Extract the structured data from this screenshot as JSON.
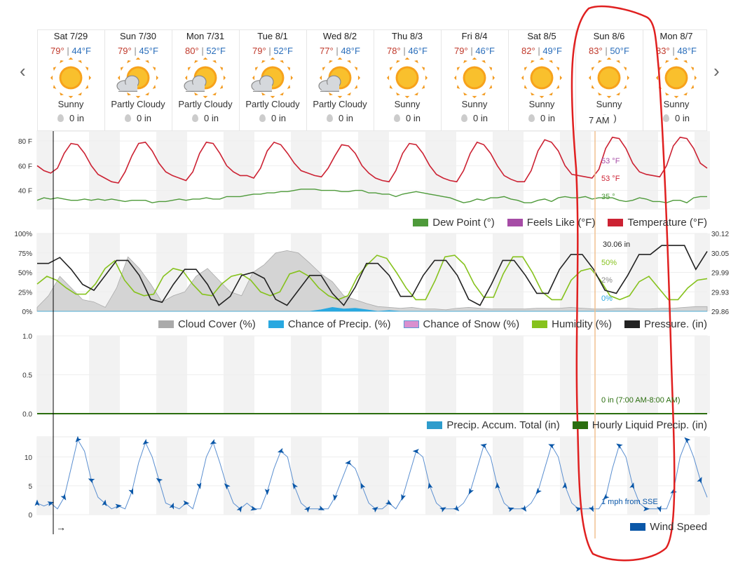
{
  "nav": {
    "prev": "‹",
    "next": "›"
  },
  "days": [
    {
      "date": "Sat 7/29",
      "hi": "79°",
      "lo": "44°F",
      "cond": "Sunny",
      "icon": "sunny-icon",
      "precip": "0 in"
    },
    {
      "date": "Sun 7/30",
      "hi": "79°",
      "lo": "45°F",
      "cond": "Partly Cloudy",
      "icon": "partly-cloudy-icon",
      "precip": "0 in"
    },
    {
      "date": "Mon 7/31",
      "hi": "80°",
      "lo": "52°F",
      "cond": "Partly Cloudy",
      "icon": "partly-cloudy-icon",
      "precip": "0 in"
    },
    {
      "date": "Tue 8/1",
      "hi": "79°",
      "lo": "52°F",
      "cond": "Partly Cloudy",
      "icon": "partly-cloudy-icon",
      "precip": "0 in"
    },
    {
      "date": "Wed 8/2",
      "hi": "77°",
      "lo": "48°F",
      "cond": "Partly Cloudy",
      "icon": "partly-cloudy-icon",
      "precip": "0 in"
    },
    {
      "date": "Thu 8/3",
      "hi": "78°",
      "lo": "46°F",
      "cond": "Sunny",
      "icon": "sunny-icon",
      "precip": "0 in"
    },
    {
      "date": "Fri 8/4",
      "hi": "79°",
      "lo": "46°F",
      "cond": "Sunny",
      "icon": "sunny-icon",
      "precip": "0 in"
    },
    {
      "date": "Sat 8/5",
      "hi": "82°",
      "lo": "49°F",
      "cond": "Sunny",
      "icon": "sunny-icon",
      "precip": "0 in"
    },
    {
      "date": "Sun 8/6",
      "hi": "83°",
      "lo": "50°F",
      "cond": "Sunny",
      "icon": "sunny-icon",
      "precip": ")"
    },
    {
      "date": "Mon 8/7",
      "hi": "83°",
      "lo": "48°F",
      "cond": "Sunny",
      "icon": "sunny-icon",
      "precip": "0 in"
    }
  ],
  "colors": {
    "temperature": "#cc2233",
    "dew_point": "#4e9a3a",
    "feels_like": "#a64ca6",
    "cloud_cover": "#aaaaaa",
    "chance_precip": "#29a8e0",
    "chance_snow": "#d98fcf",
    "humidity": "#86c21d",
    "pressure": "#222222",
    "accum": "#2e9ccc",
    "hourly_precip": "#2b6e0f",
    "wind": "#0a57a8",
    "hi": "#c0392b",
    "lo": "#2a6ebb",
    "annotation": "#e02020",
    "cursor": "#f0c090"
  },
  "cursor": {
    "time": "7 AM"
  },
  "chart_data": [
    {
      "type": "line",
      "title": "",
      "yticks": [
        "80 F",
        "60 F",
        "40 F"
      ],
      "ylim": [
        25,
        88
      ],
      "series": [
        {
          "name": "Temperature (°F)",
          "values": [
            60,
            56,
            54,
            58,
            70,
            78,
            77,
            70,
            60,
            53,
            50,
            47,
            46,
            55,
            68,
            78,
            79,
            72,
            62,
            55,
            52,
            50,
            48,
            55,
            70,
            79,
            78,
            70,
            60,
            55,
            52,
            52,
            50,
            58,
            72,
            79,
            77,
            70,
            62,
            56,
            54,
            52,
            51,
            58,
            68,
            77,
            76,
            70,
            60,
            54,
            50,
            48,
            47,
            56,
            70,
            78,
            77,
            70,
            60,
            53,
            50,
            48,
            47,
            56,
            70,
            79,
            77,
            70,
            60,
            52,
            49,
            47,
            47,
            56,
            72,
            81,
            79,
            72,
            60,
            53,
            52,
            51,
            50,
            57,
            74,
            83,
            82,
            74,
            62,
            55,
            53,
            52,
            51,
            60,
            76,
            83,
            82,
            74,
            62,
            58
          ]
        },
        {
          "name": "Dew Point (°)",
          "values": [
            32,
            34,
            33,
            34,
            33,
            32,
            32,
            33,
            32,
            33,
            32,
            33,
            32,
            31,
            32,
            32,
            32,
            30,
            31,
            31,
            32,
            33,
            32,
            33,
            33,
            34,
            33,
            33,
            35,
            35,
            35,
            36,
            37,
            37,
            38,
            38,
            39,
            39,
            40,
            41,
            41,
            41,
            40,
            40,
            40,
            39,
            39,
            40,
            40,
            38,
            38,
            37,
            37,
            35,
            37,
            38,
            39,
            38,
            37,
            36,
            35,
            34,
            32,
            30,
            31,
            33,
            32,
            34,
            34,
            35,
            33,
            32,
            30,
            30,
            32,
            33,
            31,
            34,
            35,
            34,
            34,
            35,
            33,
            34,
            34,
            34,
            32,
            31,
            32,
            34,
            33,
            31,
            31,
            30,
            32,
            32,
            30,
            34,
            35,
            35
          ]
        },
        {
          "name": "Feels Like (°F)",
          "values": []
        }
      ],
      "annotations": [
        "53 °F",
        "53 °F",
        "35 °"
      ]
    },
    {
      "type": "line",
      "title": "",
      "yticks_left": [
        "100%",
        "75%",
        "50%",
        "25%",
        "0%"
      ],
      "yticks_right": [
        "30.12",
        "30.05",
        "29.99",
        "29.93",
        "29.86"
      ],
      "ylim": [
        0,
        100
      ],
      "ylim_right": [
        29.86,
        30.12
      ],
      "series": [
        {
          "name": "Cloud Cover (%)",
          "values": [
            5,
            20,
            45,
            30,
            15,
            12,
            5,
            30,
            70,
            55,
            35,
            12,
            20,
            25,
            45,
            55,
            40,
            25,
            20,
            50,
            60,
            75,
            78,
            75,
            62,
            48,
            38,
            20,
            15,
            10,
            6,
            5,
            4,
            5,
            3,
            3,
            2,
            4,
            5,
            4,
            3,
            3,
            3,
            3,
            4,
            4,
            4,
            5,
            4,
            3,
            3,
            4,
            4,
            3,
            3,
            4,
            4,
            5,
            6,
            6
          ]
        },
        {
          "name": "Chance of Precip. (%)",
          "values": [
            0,
            0,
            0,
            0,
            0,
            0,
            0,
            0,
            0,
            0,
            0,
            0,
            0,
            0,
            0,
            0,
            0,
            0,
            0,
            0,
            0,
            0,
            0,
            0,
            0,
            2,
            5,
            3,
            4,
            2,
            0,
            1,
            0,
            0,
            0,
            0,
            0,
            0,
            0,
            0,
            0,
            0,
            0,
            0,
            0,
            0,
            0,
            0,
            0,
            0,
            0,
            0,
            0,
            0,
            0,
            0,
            0,
            0,
            0,
            0
          ]
        },
        {
          "name": "Chance of Snow (%)",
          "values": []
        },
        {
          "name": "Humidity (%)",
          "values": [
            35,
            45,
            40,
            30,
            22,
            22,
            35,
            55,
            65,
            40,
            25,
            20,
            22,
            45,
            55,
            52,
            35,
            22,
            20,
            35,
            45,
            48,
            40,
            25,
            20,
            25,
            48,
            52,
            45,
            30,
            20,
            15,
            20,
            45,
            60,
            72,
            68,
            50,
            30,
            15,
            15,
            40,
            70,
            72,
            60,
            35,
            18,
            18,
            48,
            70,
            70,
            50,
            25,
            15,
            15,
            40,
            52,
            55,
            40,
            20,
            15,
            20,
            38,
            45,
            30,
            15,
            15,
            30,
            40,
            42
          ]
        },
        {
          "name": "Pressure. (in)",
          "values": [
            30.02,
            30.02,
            30.04,
            30.0,
            29.95,
            29.93,
            29.98,
            30.03,
            30.03,
            29.98,
            29.9,
            29.89,
            29.95,
            30.0,
            30.0,
            29.95,
            29.88,
            29.91,
            29.98,
            29.99,
            29.97,
            29.9,
            29.88,
            29.93,
            29.98,
            29.98,
            29.92,
            29.88,
            29.94,
            30.02,
            30.02,
            29.98,
            29.91,
            29.91,
            29.98,
            30.03,
            30.03,
            29.98,
            29.9,
            29.88,
            29.95,
            30.03,
            30.03,
            29.98,
            29.92,
            29.92,
            30.0,
            30.05,
            30.05,
            30.0,
            29.93,
            29.92,
            29.98,
            30.05,
            30.05,
            30.08,
            30.08,
            30.08,
            30.0,
            30.06
          ]
        }
      ],
      "annotations": [
        "30.06 in",
        "50%",
        "2%",
        "0%"
      ]
    },
    {
      "type": "line",
      "title": "",
      "yticks": [
        "1.0",
        "0.5",
        "0.0"
      ],
      "ylim": [
        0,
        1
      ],
      "series": [
        {
          "name": "Precip. Accum. Total (in)",
          "values": []
        },
        {
          "name": "Hourly Liquid Precip. (in)",
          "values": [
            0,
            0,
            0,
            0,
            0,
            0,
            0,
            0,
            0,
            0
          ]
        }
      ],
      "annotations": [
        "0 in (7:00 AM-8:00 AM)"
      ]
    },
    {
      "type": "line",
      "title": "",
      "yticks": [
        "10",
        "5",
        "0"
      ],
      "ylim": [
        0,
        13.5
      ],
      "series": [
        {
          "name": "Wind Speed",
          "values": [
            2,
            1.5,
            2,
            1,
            3,
            8,
            13,
            11,
            6,
            3,
            2,
            1,
            1.5,
            1,
            4,
            9,
            12.5,
            10,
            6,
            2,
            1.5,
            1,
            2,
            1,
            5,
            10,
            12.5,
            9,
            5,
            2,
            1,
            2,
            1,
            1,
            4,
            8,
            11,
            10,
            5,
            2,
            1,
            1,
            1,
            1,
            3,
            6,
            9,
            8,
            5,
            2,
            1,
            1,
            2,
            1,
            3,
            7,
            11,
            10,
            5,
            2,
            1,
            1,
            1,
            2,
            4,
            8,
            12,
            10,
            5,
            2,
            1,
            1,
            1,
            2,
            4,
            8,
            12,
            10,
            5,
            2,
            1,
            1,
            1,
            1,
            3,
            8,
            12,
            10,
            5,
            2,
            1,
            1,
            1,
            1,
            4,
            10,
            13,
            10,
            6,
            3
          ]
        }
      ],
      "annotations": [
        "1 mph from SSE"
      ],
      "x_marker": "→"
    }
  ]
}
